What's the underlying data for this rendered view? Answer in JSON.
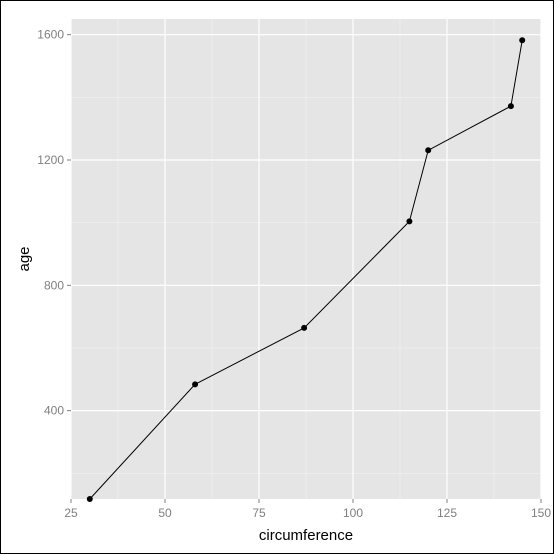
{
  "chart_data": {
    "type": "line",
    "title": "",
    "xlabel": "circumference",
    "ylabel": "age",
    "xlim": [
      25,
      150
    ],
    "ylim": [
      118,
      1650
    ],
    "x_ticks": [
      25,
      50,
      75,
      100,
      125,
      150
    ],
    "y_ticks": [
      400,
      800,
      1200,
      1600
    ],
    "grid": true,
    "legend": "none",
    "colors": {
      "panel": "#e5e5e5",
      "grid_major": "#ffffff",
      "grid_minor": "#f2f2f2",
      "line": "#000000",
      "tick_text": "#7f7f7f"
    },
    "series": [
      {
        "x": [
          30,
          58,
          87,
          115,
          120,
          142,
          145
        ],
        "y": [
          118,
          484,
          664,
          1004,
          1231,
          1372,
          1582
        ]
      }
    ]
  }
}
